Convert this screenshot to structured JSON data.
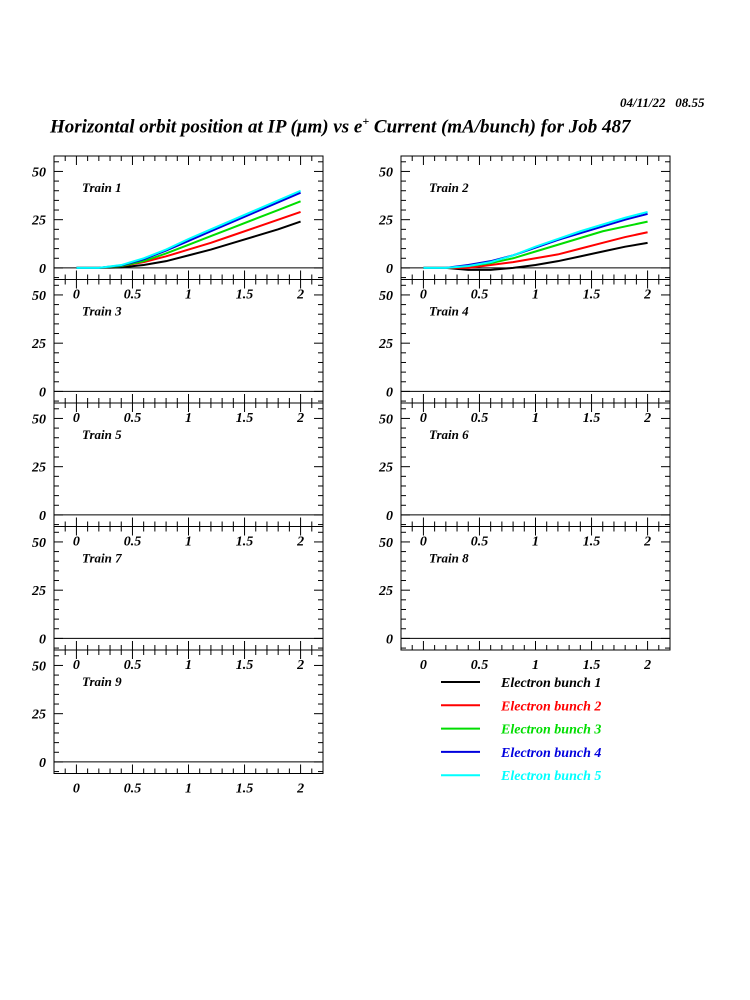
{
  "date": "04/11/22   08.55",
  "title": {
    "part1": "Horizontal orbit position at IP (",
    "mu": "μ",
    "part2": "m) vs e",
    "sup": "+",
    "part3": " Current (mA/bunch) for Job 487"
  },
  "chart_data": {
    "type": "line",
    "xlim": [
      -0.2,
      2.2
    ],
    "ylim": [
      -6,
      58
    ],
    "x_ticks": [
      "0",
      "0.5",
      "1",
      "1.5",
      "2"
    ],
    "x_tick_values": [
      0,
      0.5,
      1,
      1.5,
      2
    ],
    "y_ticks": [
      "0",
      "25",
      "50"
    ],
    "y_tick_values": [
      0,
      25,
      50
    ],
    "legend": {
      "placement": "bottom-right",
      "entries": [
        {
          "name": "Electron bunch 1",
          "color": "#000000"
        },
        {
          "name": "Electron bunch 2",
          "color": "#ff0000"
        },
        {
          "name": "Electron bunch 3",
          "color": "#00dd00"
        },
        {
          "name": "Electron bunch 4",
          "color": "#0000dd"
        },
        {
          "name": "Electron bunch 5",
          "color": "#00ffff"
        }
      ]
    },
    "x": [
      0,
      0.2,
      0.4,
      0.6,
      0.8,
      1.0,
      1.2,
      1.4,
      1.6,
      1.8,
      2.0
    ],
    "panels": [
      {
        "label": "Train 1",
        "series": [
          [
            0,
            0,
            0.3,
            1.5,
            3.5,
            6.5,
            9.5,
            13,
            16.5,
            20,
            24
          ],
          [
            0,
            0,
            1,
            3,
            6,
            9.5,
            13,
            17,
            21,
            25,
            29
          ],
          [
            0,
            0,
            1,
            3.5,
            7.5,
            12,
            16.5,
            21,
            25.5,
            30,
            34.5
          ],
          [
            0,
            0,
            1.3,
            4.5,
            9,
            14,
            19,
            24,
            29,
            34,
            39
          ],
          [
            0,
            0,
            1.5,
            5,
            9.5,
            15,
            20,
            25,
            30,
            35,
            40
          ]
        ]
      },
      {
        "label": "Train 2",
        "series": [
          [
            0,
            0,
            -1,
            -1,
            0,
            1.5,
            3.5,
            6,
            8.5,
            11,
            13
          ],
          [
            0,
            0,
            0,
            1.5,
            3,
            5,
            7,
            10,
            13,
            16,
            18.5
          ],
          [
            0,
            0,
            1,
            2.5,
            5,
            8.5,
            12,
            15.5,
            19,
            21.5,
            24
          ],
          [
            0,
            0,
            1.5,
            3.5,
            6.5,
            10.5,
            14.5,
            18,
            21.5,
            25,
            28
          ],
          [
            0,
            0,
            1,
            3,
            6.5,
            11,
            15,
            19,
            22.5,
            26,
            29
          ]
        ]
      },
      {
        "label": "Train 3",
        "series": []
      },
      {
        "label": "Train 4",
        "series": []
      },
      {
        "label": "Train 5",
        "series": []
      },
      {
        "label": "Train 6",
        "series": []
      },
      {
        "label": "Train 7",
        "series": []
      },
      {
        "label": "Train 8",
        "series": []
      },
      {
        "label": "Train 9",
        "series": []
      }
    ]
  }
}
